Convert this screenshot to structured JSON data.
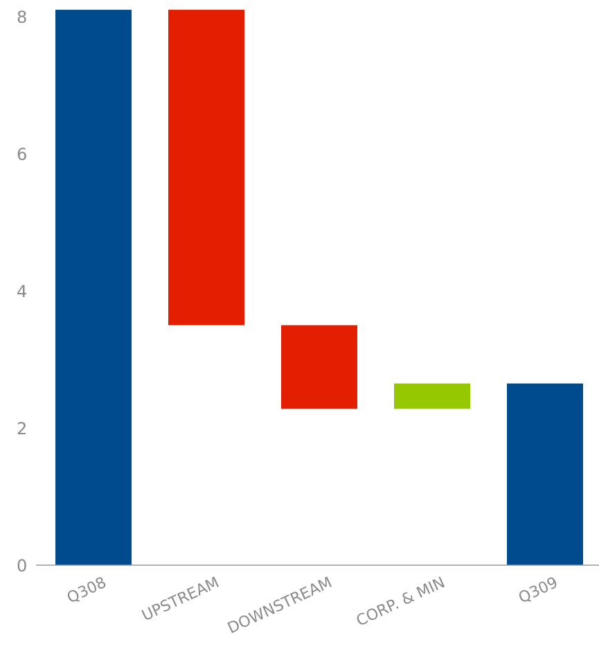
{
  "chart_data": {
    "type": "bar",
    "variant": "waterfall",
    "categories": [
      "Q308",
      "UPSTREAM",
      "DOWNSTREAM",
      "CORP. & MIN",
      "Q309"
    ],
    "bars": [
      {
        "category": "Q308",
        "start": 0,
        "end": 8.1,
        "kind": "total",
        "color": "#004b8d"
      },
      {
        "category": "UPSTREAM",
        "start": 8.1,
        "end": 3.5,
        "kind": "decrease",
        "color": "#e41e00"
      },
      {
        "category": "DOWNSTREAM",
        "start": 3.5,
        "end": 2.28,
        "kind": "decrease",
        "color": "#e41e00"
      },
      {
        "category": "CORP. & MIN",
        "start": 2.28,
        "end": 2.65,
        "kind": "increase",
        "color": "#96c800"
      },
      {
        "category": "Q309",
        "start": 0,
        "end": 2.65,
        "kind": "total",
        "color": "#004b8d"
      }
    ],
    "yticks": [
      "0",
      "2",
      "4",
      "6",
      "8"
    ],
    "ylim": [
      0,
      8
    ],
    "grid": false,
    "legend": "none"
  }
}
